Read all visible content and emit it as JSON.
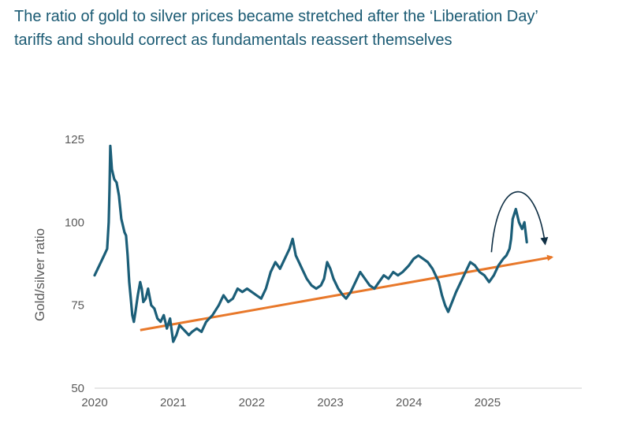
{
  "header": {
    "title_line1": "The ratio of gold to silver prices became stretched after the ‘Liberation Day’",
    "title_line2": "tariffs and should correct as fundamentals reassert themselves"
  },
  "colors": {
    "title": "#1a5a73",
    "series": "#1b5e78",
    "trend": "#e8782a",
    "annotation": "#0f2f44",
    "axis": "#cfcfcf",
    "tick_text": "#595959"
  },
  "chart_data": {
    "type": "line",
    "title": "The ratio of gold to silver prices became stretched after the ‘Liberation Day’ tariffs and should correct as fundamentals reassert themselves",
    "xlabel": "",
    "ylabel": "Gold/silver ratio",
    "xlim": [
      2020.0,
      2026.2
    ],
    "ylim": [
      50,
      125
    ],
    "yticks": [
      50,
      75,
      100,
      125
    ],
    "xticks": [
      2020,
      2021,
      2022,
      2023,
      2024,
      2025
    ],
    "xtick_labels": [
      "2020",
      "2021",
      "2022",
      "2023",
      "2024",
      "2025"
    ],
    "grid": false,
    "series": [
      {
        "name": "Gold/silver ratio",
        "x": [
          2020.0,
          2020.04,
          2020.08,
          2020.12,
          2020.16,
          2020.18,
          2020.19,
          2020.2,
          2020.22,
          2020.25,
          2020.28,
          2020.31,
          2020.34,
          2020.36,
          2020.38,
          2020.4,
          2020.42,
          2020.44,
          2020.46,
          2020.48,
          2020.5,
          2020.52,
          2020.55,
          2020.58,
          2020.6,
          2020.62,
          2020.65,
          2020.68,
          2020.72,
          2020.76,
          2020.8,
          2020.84,
          2020.88,
          2020.92,
          2020.96,
          2021.0,
          2021.04,
          2021.08,
          2021.12,
          2021.16,
          2021.2,
          2021.24,
          2021.3,
          2021.36,
          2021.42,
          2021.5,
          2021.58,
          2021.64,
          2021.7,
          2021.76,
          2021.82,
          2021.88,
          2021.94,
          2022.0,
          2022.06,
          2022.12,
          2022.18,
          2022.24,
          2022.3,
          2022.36,
          2022.42,
          2022.48,
          2022.52,
          2022.56,
          2022.6,
          2022.64,
          2022.7,
          2022.76,
          2022.82,
          2022.88,
          2022.92,
          2022.96,
          2023.0,
          2023.04,
          2023.1,
          2023.16,
          2023.2,
          2023.26,
          2023.32,
          2023.38,
          2023.44,
          2023.5,
          2023.56,
          2023.62,
          2023.68,
          2023.74,
          2023.8,
          2023.86,
          2023.92,
          2024.0,
          2024.06,
          2024.12,
          2024.18,
          2024.24,
          2024.3,
          2024.34,
          2024.38,
          2024.42,
          2024.46,
          2024.5,
          2024.55,
          2024.6,
          2024.66,
          2024.72,
          2024.78,
          2024.84,
          2024.9,
          2024.96,
          2025.02,
          2025.08,
          2025.14,
          2025.2,
          2025.24,
          2025.26,
          2025.28,
          2025.3,
          2025.32,
          2025.36,
          2025.4,
          2025.44,
          2025.47,
          2025.5
        ],
        "values": [
          84,
          86,
          88,
          90,
          92,
          100,
          110,
          123,
          116,
          113,
          112,
          108,
          101,
          99,
          97,
          96,
          90,
          82,
          77,
          72,
          70,
          73,
          78,
          82,
          80,
          76,
          77,
          80,
          75,
          74,
          71,
          70,
          72,
          68,
          71,
          64,
          66,
          69,
          68,
          67,
          66,
          67,
          68,
          67,
          70,
          72,
          75,
          78,
          76,
          77,
          80,
          79,
          80,
          79,
          78,
          77,
          80,
          85,
          88,
          86,
          89,
          92,
          95,
          90,
          88,
          86,
          83,
          81,
          80,
          81,
          83,
          88,
          86,
          83,
          80,
          78,
          77,
          79,
          82,
          85,
          83,
          81,
          80,
          82,
          84,
          83,
          85,
          84,
          85,
          87,
          89,
          90,
          89,
          88,
          86,
          84,
          82,
          78,
          75,
          73,
          76,
          79,
          82,
          85,
          88,
          87,
          85,
          84,
          82,
          84,
          87,
          89,
          90,
          91,
          92,
          95,
          101,
          104,
          100,
          98,
          100,
          94
        ]
      },
      {
        "name": "Trend",
        "x": [
          2020.58,
          2025.82
        ],
        "values": [
          67.5,
          89.5
        ]
      }
    ],
    "annotations": [
      {
        "type": "curved-arrow",
        "description": "correction expected",
        "from_x": 2025.05,
        "from_y": 91,
        "to_x": 2025.73,
        "to_y": 94
      }
    ]
  }
}
